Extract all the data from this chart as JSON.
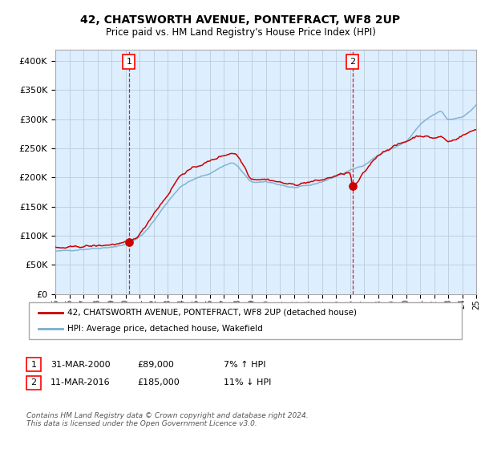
{
  "title": "42, CHATSWORTH AVENUE, PONTEFRACT, WF8 2UP",
  "subtitle": "Price paid vs. HM Land Registry's House Price Index (HPI)",
  "legend_line1": "42, CHATSWORTH AVENUE, PONTEFRACT, WF8 2UP (detached house)",
  "legend_line2": "HPI: Average price, detached house, Wakefield",
  "annotation1_date": "31-MAR-2000",
  "annotation1_price": "£89,000",
  "annotation1_hpi": "7% ↑ HPI",
  "annotation2_date": "11-MAR-2016",
  "annotation2_price": "£185,000",
  "annotation2_hpi": "11% ↓ HPI",
  "footer": "Contains HM Land Registry data © Crown copyright and database right 2024.\nThis data is licensed under the Open Government Licence v3.0.",
  "red_color": "#cc0000",
  "blue_color": "#7aadcf",
  "bg_color": "#ddeeff",
  "grid_color": "#bbccdd",
  "ylim": [
    0,
    420000
  ],
  "yticks": [
    0,
    50000,
    100000,
    150000,
    200000,
    250000,
    300000,
    350000,
    400000
  ],
  "start_year": 1995,
  "end_year": 2025,
  "purchase1_year": 2000.25,
  "purchase1_value": 89000,
  "purchase2_year": 2016.19,
  "purchase2_value": 185000,
  "hpi_anchors_x": [
    1995.0,
    1996.0,
    1997.0,
    1998.0,
    1999.0,
    2000.0,
    2001.0,
    2002.0,
    2003.0,
    2004.0,
    2005.0,
    2006.0,
    2007.0,
    2007.6,
    2008.5,
    2009.0,
    2010.0,
    2011.0,
    2012.0,
    2013.0,
    2014.0,
    2015.0,
    2016.0,
    2017.0,
    2018.0,
    2019.0,
    2020.0,
    2021.0,
    2022.0,
    2022.5,
    2023.0,
    2024.0,
    2025.0
  ],
  "hpi_anchors_y": [
    73000,
    75000,
    77000,
    79000,
    81000,
    85000,
    98000,
    125000,
    158000,
    185000,
    198000,
    207000,
    220000,
    225000,
    205000,
    192000,
    192000,
    188000,
    183000,
    186000,
    193000,
    202000,
    212000,
    222000,
    238000,
    250000,
    262000,
    290000,
    308000,
    313000,
    300000,
    305000,
    325000
  ],
  "price_anchors_x": [
    1995.0,
    1996.0,
    1997.0,
    1998.0,
    1999.0,
    2000.0,
    2000.25,
    2001.0,
    2002.0,
    2003.0,
    2004.0,
    2005.0,
    2006.0,
    2007.0,
    2007.7,
    2008.5,
    2009.0,
    2010.0,
    2011.0,
    2012.0,
    2013.0,
    2014.0,
    2015.0,
    2016.0,
    2016.19,
    2017.0,
    2018.0,
    2019.0,
    2020.0,
    2021.0,
    2022.0,
    2022.5,
    2023.0,
    2024.0,
    2025.0
  ],
  "price_anchors_y": [
    78000,
    80000,
    82000,
    83000,
    85000,
    88000,
    89000,
    103000,
    138000,
    170000,
    205000,
    218000,
    228000,
    238000,
    242000,
    218000,
    198000,
    197000,
    192000,
    188000,
    192000,
    196000,
    203000,
    208000,
    185000,
    208000,
    238000,
    252000,
    262000,
    272000,
    268000,
    270000,
    262000,
    272000,
    283000
  ]
}
